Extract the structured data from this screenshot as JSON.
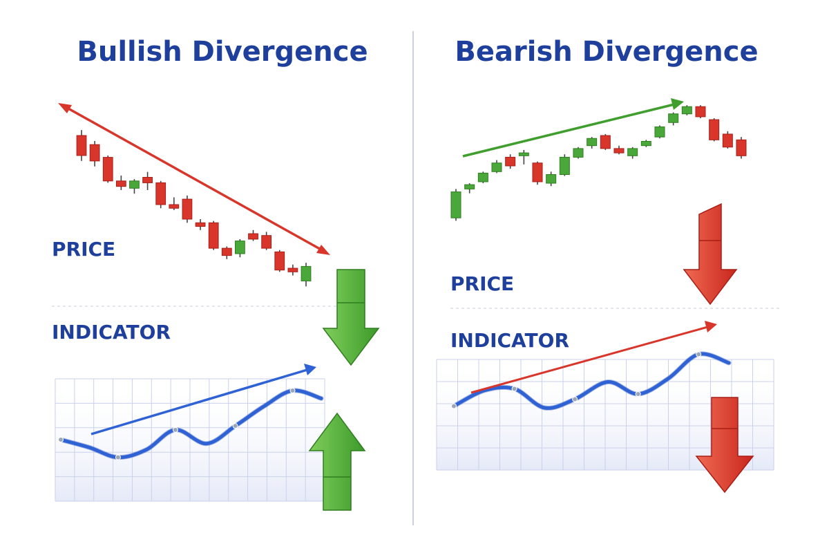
{
  "colors": {
    "title": "#1f3f9c",
    "label": "#1f3f9c",
    "bull_candle": "#4aa83a",
    "bear_candle": "#d9362b",
    "indicator_line": "#2f62d4",
    "red_arrow": "#d9362b",
    "green_arrow": "#3f9e2e",
    "blue_arrow": "#2f62d4",
    "grid": "#c9d1ec",
    "divider": "#b7c0dc"
  },
  "icons": [
    "down-arrow-icon",
    "up-arrow-icon"
  ],
  "chart_data": [
    {
      "type": "candlestick",
      "title": "Bullish Divergence",
      "price_label": "PRICE",
      "indicator_label": "INDICATOR",
      "price_trend": "down",
      "indicator_trend": "up",
      "candles": [
        {
          "o": 92,
          "h": 95,
          "l": 78,
          "c": 81
        },
        {
          "o": 87,
          "h": 89,
          "l": 75,
          "c": 78
        },
        {
          "o": 80,
          "h": 81,
          "l": 66,
          "c": 67
        },
        {
          "o": 67,
          "h": 70,
          "l": 62,
          "c": 64
        },
        {
          "o": 63,
          "h": 68,
          "l": 60,
          "c": 67
        },
        {
          "o": 69,
          "h": 72,
          "l": 62,
          "c": 66
        },
        {
          "o": 66,
          "h": 67,
          "l": 52,
          "c": 54
        },
        {
          "o": 54,
          "h": 58,
          "l": 51,
          "c": 52
        },
        {
          "o": 57,
          "h": 59,
          "l": 44,
          "c": 46
        },
        {
          "o": 44,
          "h": 46,
          "l": 40,
          "c": 42
        },
        {
          "o": 44,
          "h": 45,
          "l": 29,
          "c": 30
        },
        {
          "o": 30,
          "h": 31,
          "l": 24,
          "c": 26
        },
        {
          "o": 27,
          "h": 35,
          "l": 25,
          "c": 34
        },
        {
          "o": 38,
          "h": 40,
          "l": 34,
          "c": 35
        },
        {
          "o": 37,
          "h": 39,
          "l": 29,
          "c": 30
        },
        {
          "o": 28,
          "h": 29,
          "l": 17,
          "c": 18
        },
        {
          "o": 19,
          "h": 21,
          "l": 15,
          "c": 17
        },
        {
          "o": 12,
          "h": 22,
          "l": 9,
          "c": 20
        }
      ],
      "indicator": {
        "x": [
          0,
          0.11,
          0.22,
          0.33,
          0.44,
          0.56,
          0.67,
          0.78,
          0.89,
          1
        ],
        "y": [
          38,
          30,
          20,
          28,
          48,
          34,
          52,
          72,
          88,
          80
        ]
      }
    },
    {
      "type": "candlestick",
      "title": "Bearish Divergence",
      "price_label": "PRICE",
      "indicator_label": "INDICATOR",
      "price_trend": "up",
      "indicator_trend": "down",
      "candles": [
        {
          "o": 20,
          "h": 40,
          "l": 18,
          "c": 38
        },
        {
          "o": 40,
          "h": 44,
          "l": 37,
          "c": 43
        },
        {
          "o": 45,
          "h": 52,
          "l": 44,
          "c": 51
        },
        {
          "o": 52,
          "h": 60,
          "l": 51,
          "c": 58
        },
        {
          "o": 62,
          "h": 64,
          "l": 54,
          "c": 56
        },
        {
          "o": 63,
          "h": 67,
          "l": 57,
          "c": 65
        },
        {
          "o": 58,
          "h": 59,
          "l": 43,
          "c": 45
        },
        {
          "o": 44,
          "h": 52,
          "l": 42,
          "c": 50
        },
        {
          "o": 50,
          "h": 64,
          "l": 49,
          "c": 62
        },
        {
          "o": 62,
          "h": 69,
          "l": 61,
          "c": 68
        },
        {
          "o": 70,
          "h": 76,
          "l": 68,
          "c": 75
        },
        {
          "o": 77,
          "h": 78,
          "l": 67,
          "c": 68
        },
        {
          "o": 68,
          "h": 70,
          "l": 64,
          "c": 65
        },
        {
          "o": 63,
          "h": 69,
          "l": 61,
          "c": 68
        },
        {
          "o": 70,
          "h": 74,
          "l": 69,
          "c": 73
        },
        {
          "o": 76,
          "h": 84,
          "l": 75,
          "c": 83
        },
        {
          "o": 86,
          "h": 93,
          "l": 84,
          "c": 92
        },
        {
          "o": 92,
          "h": 98,
          "l": 91,
          "c": 97
        },
        {
          "o": 97,
          "h": 98,
          "l": 89,
          "c": 90
        },
        {
          "o": 88,
          "h": 89,
          "l": 73,
          "c": 74
        },
        {
          "o": 78,
          "h": 80,
          "l": 68,
          "c": 69
        },
        {
          "o": 74,
          "h": 76,
          "l": 61,
          "c": 63
        }
      ],
      "indicator": {
        "x": [
          0,
          0.11,
          0.22,
          0.33,
          0.44,
          0.56,
          0.67,
          0.78,
          0.89,
          1
        ],
        "y": [
          30,
          48,
          50,
          28,
          38,
          58,
          44,
          62,
          90,
          80
        ]
      }
    }
  ]
}
